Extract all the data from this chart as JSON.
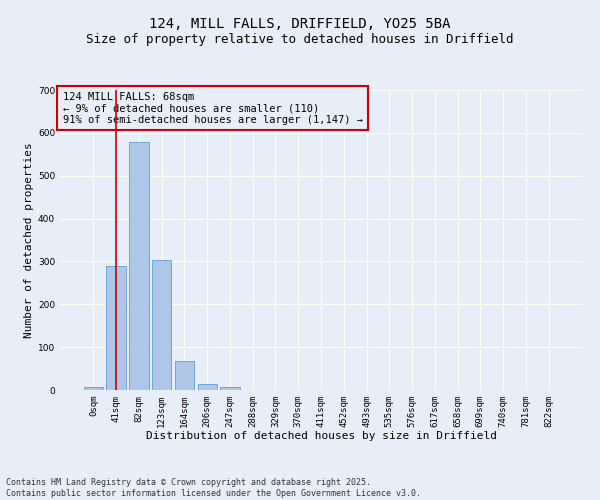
{
  "title_line1": "124, MILL FALLS, DRIFFIELD, YO25 5BA",
  "title_line2": "Size of property relative to detached houses in Driffield",
  "xlabel": "Distribution of detached houses by size in Driffield",
  "ylabel": "Number of detached properties",
  "bar_labels": [
    "0sqm",
    "41sqm",
    "82sqm",
    "123sqm",
    "164sqm",
    "206sqm",
    "247sqm",
    "288sqm",
    "329sqm",
    "370sqm",
    "411sqm",
    "452sqm",
    "493sqm",
    "535sqm",
    "576sqm",
    "617sqm",
    "658sqm",
    "699sqm",
    "740sqm",
    "781sqm",
    "822sqm"
  ],
  "bar_values": [
    8,
    290,
    578,
    303,
    68,
    14,
    8,
    0,
    0,
    0,
    0,
    0,
    0,
    0,
    0,
    0,
    0,
    0,
    0,
    0,
    0
  ],
  "bar_color": "#aec6e8",
  "bar_edge_color": "#5a9fd4",
  "background_color": "#e8eef8",
  "grid_color": "#ffffff",
  "vline_x": 1,
  "vline_color": "#cc0000",
  "ylim": [
    0,
    700
  ],
  "yticks": [
    0,
    100,
    200,
    300,
    400,
    500,
    600,
    700
  ],
  "annotation_title": "124 MILL FALLS: 68sqm",
  "annotation_line2": "← 9% of detached houses are smaller (110)",
  "annotation_line3": "91% of semi-detached houses are larger (1,147) →",
  "annotation_box_color": "#cc0000",
  "footnote_line1": "Contains HM Land Registry data © Crown copyright and database right 2025.",
  "footnote_line2": "Contains public sector information licensed under the Open Government Licence v3.0.",
  "title_fontsize": 10,
  "subtitle_fontsize": 9,
  "axis_label_fontsize": 8,
  "tick_fontsize": 6.5,
  "annotation_fontsize": 7.5,
  "footnote_fontsize": 6
}
